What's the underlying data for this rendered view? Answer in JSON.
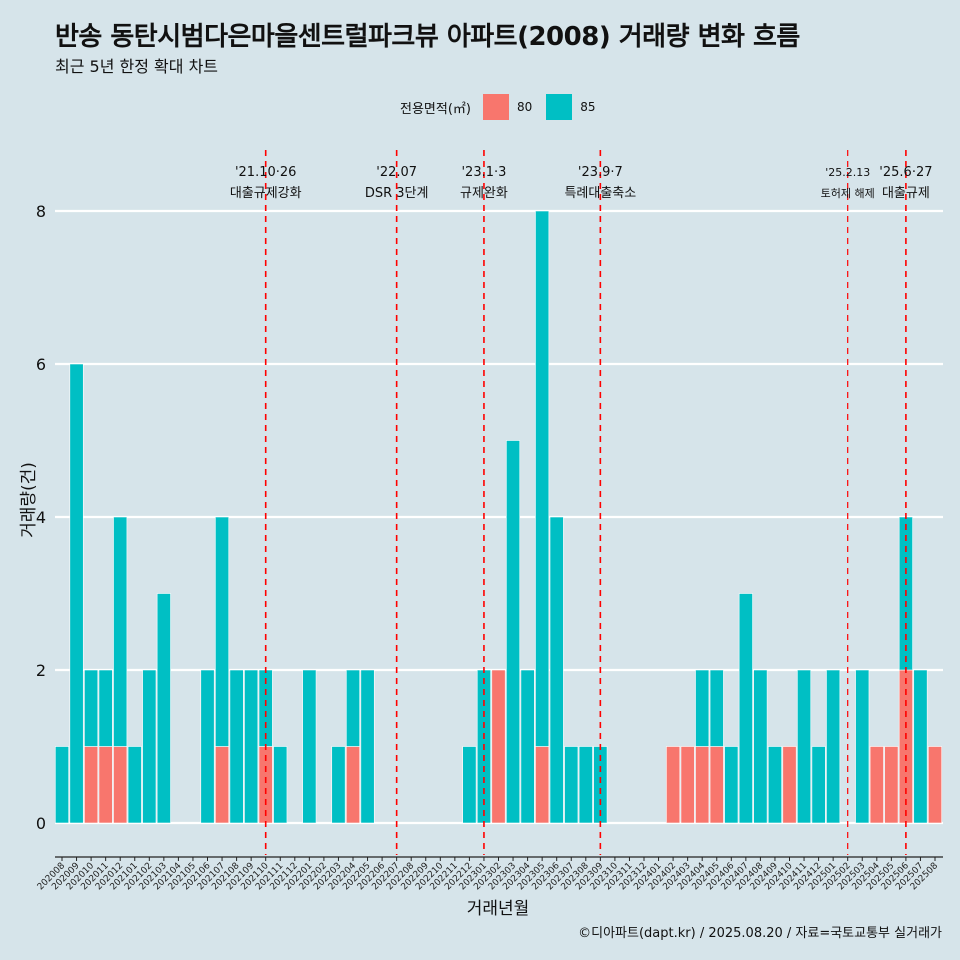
{
  "title": "반송 동탄시범다은마을센트럴파크뷰 아파트(2008) 거래량 변화 흐름",
  "subtitle": "최근 5년 한정 확대 차트",
  "legend_title": "전용면적(㎡)",
  "caption": "©디아파트(dapt.kr) / 2025.08.20 / 자료=국토교통부 실거래가",
  "chart_data": {
    "type": "bar",
    "stacked": true,
    "xlabel": "거래년월",
    "ylabel": "거래량(건)",
    "ylim": [
      0,
      8.4
    ],
    "yticks": [
      0,
      2,
      4,
      6,
      8
    ],
    "grid": true,
    "legend_position": "top",
    "categories": [
      "202008",
      "202009",
      "202010",
      "202011",
      "202012",
      "202101",
      "202102",
      "202103",
      "202104",
      "202105",
      "202106",
      "202107",
      "202108",
      "202109",
      "202110",
      "202111",
      "202112",
      "202201",
      "202202",
      "202203",
      "202204",
      "202205",
      "202206",
      "202207",
      "202208",
      "202209",
      "202210",
      "202211",
      "202212",
      "202301",
      "202302",
      "202303",
      "202304",
      "202305",
      "202306",
      "202307",
      "202308",
      "202309",
      "202310",
      "202311",
      "202312",
      "202401",
      "202402",
      "202403",
      "202404",
      "202405",
      "202406",
      "202407",
      "202408",
      "202409",
      "202410",
      "202411",
      "202412",
      "202501",
      "202502",
      "202503",
      "202504",
      "202505",
      "202506",
      "202507",
      "202508"
    ],
    "series": [
      {
        "name": "80",
        "color": "#f8766d",
        "values": [
          0,
          0,
          1,
          1,
          1,
          0,
          0,
          0,
          0,
          0,
          0,
          1,
          0,
          0,
          1,
          0,
          0,
          0,
          0,
          0,
          1,
          0,
          0,
          0,
          0,
          0,
          0,
          0,
          0,
          0,
          2,
          0,
          0,
          1,
          0,
          0,
          0,
          0,
          0,
          0,
          0,
          0,
          1,
          1,
          1,
          1,
          0,
          0,
          0,
          0,
          1,
          0,
          0,
          0,
          0,
          0,
          1,
          1,
          2,
          0,
          1
        ]
      },
      {
        "name": "85",
        "color": "#00bfc4",
        "values": [
          1,
          6,
          1,
          1,
          3,
          1,
          2,
          3,
          0,
          0,
          2,
          3,
          2,
          2,
          1,
          1,
          0,
          2,
          0,
          1,
          1,
          2,
          0,
          0,
          0,
          0,
          0,
          0,
          1,
          2,
          0,
          5,
          2,
          7,
          4,
          1,
          1,
          1,
          0,
          0,
          0,
          0,
          0,
          0,
          1,
          1,
          1,
          3,
          2,
          1,
          0,
          2,
          1,
          2,
          0,
          2,
          0,
          0,
          2,
          2,
          0
        ]
      }
    ],
    "events": [
      {
        "category": "202110",
        "date": "'21.10·26",
        "label": "대출규제강화",
        "small": false
      },
      {
        "category": "202207",
        "date": "'22.07",
        "label": "DSR 3단계",
        "small": false
      },
      {
        "category": "202301",
        "date": "'23.1·3",
        "label": "규제완화",
        "small": false
      },
      {
        "category": "202309",
        "date": "'23.9·7",
        "label": "특례대출축소",
        "small": false
      },
      {
        "category": "202502",
        "date": "'25.2.13",
        "label": "토허제 해제",
        "small": true
      },
      {
        "category": "202506",
        "date": "'25.6·27",
        "label": "대출규제",
        "small": false
      }
    ],
    "event_color": "#ff0000"
  }
}
